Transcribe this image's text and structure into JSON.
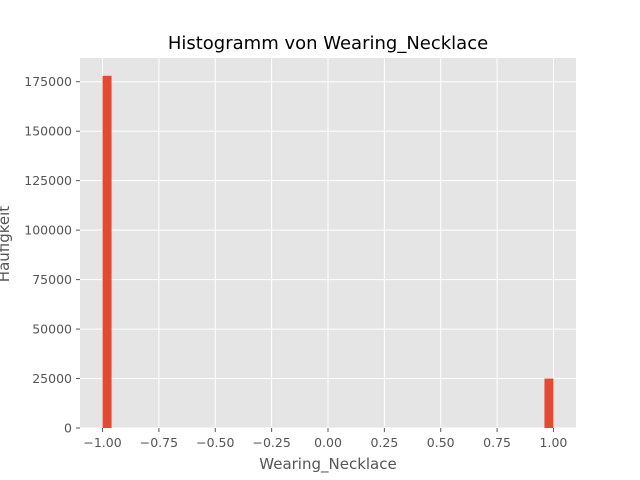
{
  "chart_data": {
    "type": "bar",
    "title": "Histogramm von Wearing_Necklace",
    "xlabel": "Wearing_Necklace",
    "ylabel": "Häufigkeit",
    "xlim": [
      -1.1,
      1.1
    ],
    "ylim": [
      0,
      187000
    ],
    "grid": true,
    "bin_width": 0.04,
    "bins": [
      {
        "x_start": -1.0,
        "x_end": -0.96,
        "value": 178000
      },
      {
        "x_start": 0.96,
        "x_end": 1.0,
        "value": 25000
      }
    ],
    "x_ticks": [
      "−1.00",
      "−0.75",
      "−0.50",
      "−0.25",
      "0.00",
      "0.25",
      "0.50",
      "0.75",
      "1.00"
    ],
    "x_tick_values": [
      -1.0,
      -0.75,
      -0.5,
      -0.25,
      0.0,
      0.25,
      0.5,
      0.75,
      1.0
    ],
    "y_ticks": [
      "0",
      "25000",
      "50000",
      "75000",
      "100000",
      "125000",
      "150000",
      "175000"
    ],
    "y_tick_values": [
      0,
      25000,
      50000,
      75000,
      100000,
      125000,
      150000,
      175000
    ],
    "colors": {
      "bar": "#E24A33",
      "plot_bg": "#E5E5E5",
      "grid": "#FFFFFF",
      "tick": "#555555"
    }
  }
}
